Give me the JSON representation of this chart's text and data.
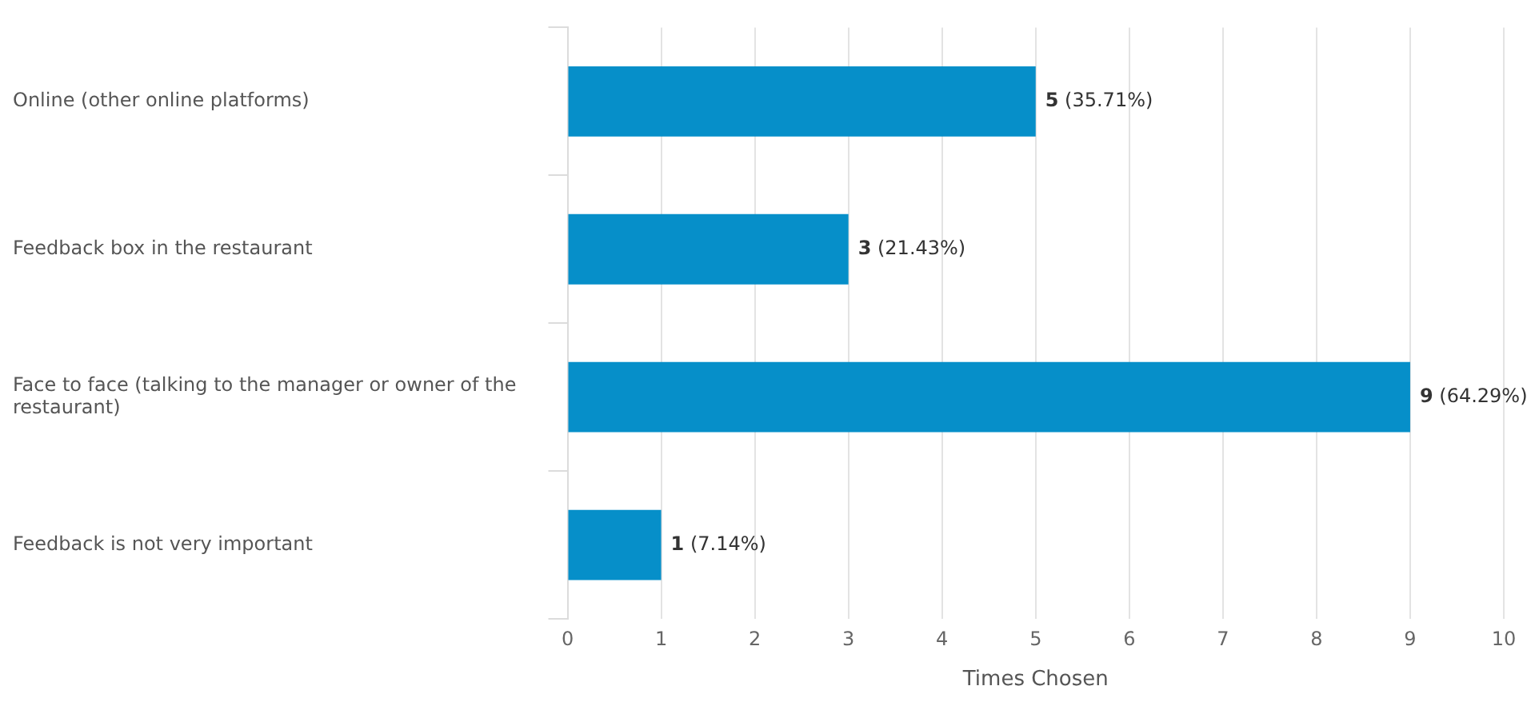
{
  "chart_data": {
    "type": "bar",
    "orientation": "horizontal",
    "xlabel": "Times Chosen",
    "categories": [
      "Online (other online platforms)",
      "Feedback box in the restaurant",
      "Face to face (talking to the manager or owner of the restaurant)",
      "Feedback is not very important"
    ],
    "values": [
      5,
      3,
      9,
      1
    ],
    "color": "#068fc9",
    "value_labels": [
      "5 (35.71%)",
      "3 (21.43%)",
      "9 (64.29%)",
      "1 (7.14%)"
    ],
    "xlim": [
      0,
      10
    ],
    "xticks": [
      0,
      1,
      2,
      3,
      4,
      5,
      6,
      7,
      8,
      9,
      10
    ],
    "grid": "x",
    "legend": false
  }
}
